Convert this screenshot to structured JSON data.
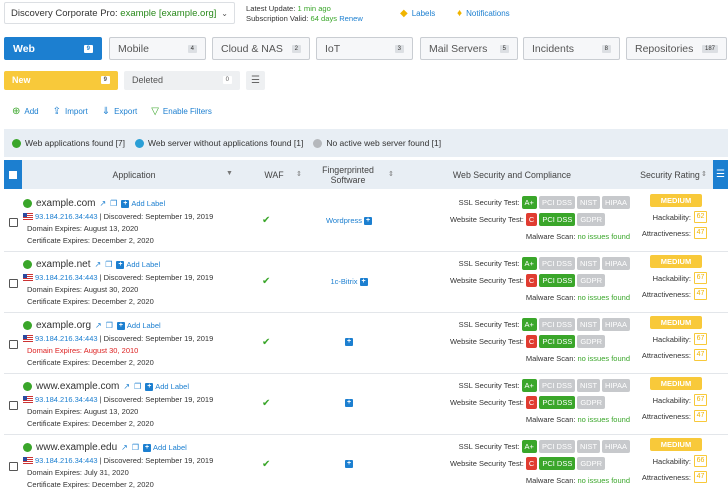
{
  "header": {
    "scope_prefix": "Discovery Corporate Pro:",
    "scope_link": "example [example.org]",
    "update_label": "Latest Update:",
    "update_value": "1 min ago",
    "sub_label": "Subscription Valid:",
    "sub_value": "64 days",
    "renew": "Renew",
    "labels_btn": "Labels",
    "notifications_btn": "Notifications"
  },
  "tabs": [
    {
      "label": "Web",
      "count": "9"
    },
    {
      "label": "Mobile",
      "count": "4"
    },
    {
      "label": "Cloud & NAS",
      "count": "2"
    },
    {
      "label": "IoT",
      "count": "3"
    },
    {
      "label": "Mail Servers",
      "count": "5"
    },
    {
      "label": "Incidents",
      "count": "8"
    },
    {
      "label": "Repositories",
      "count": "187"
    }
  ],
  "subtabs": {
    "new_label": "New",
    "new_count": "9",
    "deleted_label": "Deleted",
    "deleted_count": "0"
  },
  "actions": {
    "add": "Add",
    "import": "Import",
    "export": "Export",
    "filters": "Enable Filters"
  },
  "legend": {
    "found": "Web applications found [7]",
    "without": "Web server without applications found [1]",
    "none": "No active web server found [1]",
    "colors": {
      "found": "#3aa62a",
      "without": "#2a9fd6",
      "none": "#b5b8bc"
    }
  },
  "columns": {
    "application": "Application",
    "waf": "WAF",
    "fingerprinted": "Fingerprinted",
    "software": "Software",
    "security": "Web Security and Compliance",
    "rating": "Security Rating"
  },
  "labels": {
    "add_label": "Add Label",
    "discovered": "Discovered:",
    "domain_expires": "Domain Expires:",
    "cert_expires": "Certificate Expires:",
    "ssl_test": "SSL Security Test:",
    "web_test": "Website Security Test:",
    "malware": "Malware Scan:",
    "no_issues": "no issues found",
    "hackability": "Hackability:",
    "attractiveness": "Attractiveness:",
    "medium": "MEDIUM",
    "pci": "PCI DSS",
    "nist": "NIST",
    "hipaa": "HIPAA",
    "gdpr": "GDPR"
  },
  "rows": [
    {
      "host": "example.com",
      "ip": "93.184.216.34",
      "port": ":443",
      "discovered": "| Discovered: September 19, 2019",
      "domain_expires": "August 13, 2020",
      "domain_red": false,
      "cert_expires": "December 2, 2020",
      "software": "Wordpress",
      "ssl_grade": "A+",
      "web_grade": "C",
      "hack": "62",
      "attr": "47"
    },
    {
      "host": "example.net",
      "ip": "93.184.216.34",
      "port": ":443",
      "discovered": "| Discovered: September 19, 2019",
      "domain_expires": "August 30, 2020",
      "domain_red": false,
      "cert_expires": "December 2, 2020",
      "software": "1c-Bitrix",
      "ssl_grade": "A+",
      "web_grade": "C",
      "hack": "67",
      "attr": "47"
    },
    {
      "host": "example.org",
      "ip": "93.184.216.34",
      "port": ":443",
      "discovered": "| Discovered: September 19, 2019",
      "domain_expires": "August 30, 2010",
      "domain_red": true,
      "cert_expires": "December 2, 2020",
      "software": "",
      "ssl_grade": "A+",
      "web_grade": "C",
      "hack": "67",
      "attr": "47"
    },
    {
      "host": "www.example.com",
      "ip": "93.184.216.34",
      "port": ":443",
      "discovered": "| Discovered: September 19, 2019",
      "domain_expires": "August 13, 2020",
      "domain_red": false,
      "cert_expires": "December 2, 2020",
      "software": "",
      "ssl_grade": "A+",
      "web_grade": "C",
      "hack": "67",
      "attr": "47"
    },
    {
      "host": "www.example.edu",
      "ip": "93.184.216.34",
      "port": ":443",
      "discovered": "| Discovered: September 19, 2019",
      "domain_expires": "July 31, 2020",
      "domain_red": false,
      "cert_expires": "December 2, 2020",
      "software": "",
      "ssl_grade": "A+",
      "web_grade": "C",
      "hack": "66",
      "attr": "47"
    }
  ]
}
